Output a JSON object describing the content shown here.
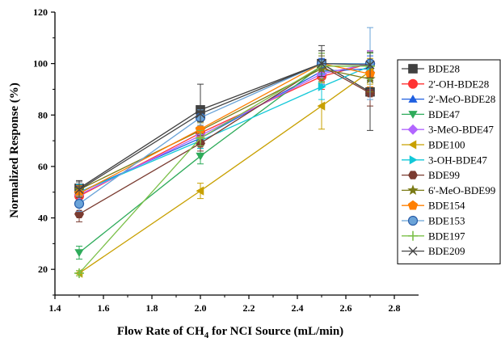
{
  "chart_data": {
    "type": "scatter",
    "title": "",
    "xlabel_main": "Flow Rate of CH",
    "xlabel_sub": "4",
    "xlabel_rest": " for NCI Source (mL/min)",
    "ylabel": "Normalized Response (%)",
    "xlim": [
      1.4,
      2.9
    ],
    "ylim": [
      10,
      120
    ],
    "xticks": [
      "1.4",
      "1.6",
      "1.8",
      "2.0",
      "2.2",
      "2.4",
      "2.6",
      "2.8"
    ],
    "yticks": [
      "20",
      "40",
      "60",
      "80",
      "100",
      "120"
    ],
    "x": [
      1.5,
      2.0,
      2.5,
      2.7
    ],
    "legend_position": "right",
    "series": [
      {
        "name": "BDE28",
        "color": "#404040",
        "marker": "square",
        "values": [
          51.5,
          82,
          100,
          89
        ],
        "err": [
          3,
          10,
          7,
          15
        ]
      },
      {
        "name": "2'-OH-BDE28",
        "color": "#ff3333",
        "marker": "circle",
        "values": [
          48.5,
          73,
          95,
          100
        ],
        "err": [
          3,
          3,
          5,
          5
        ]
      },
      {
        "name": "2'-MeO-BDE28",
        "color": "#1f5fe0",
        "marker": "triangle-up",
        "values": [
          50,
          71,
          97,
          98
        ],
        "err": [
          3,
          3,
          5,
          5
        ]
      },
      {
        "name": "BDE47",
        "color": "#2eab5a",
        "marker": "triangle-down",
        "values": [
          26.5,
          64,
          99,
          99
        ],
        "err": [
          2.5,
          3,
          5,
          5
        ]
      },
      {
        "name": "3-MeO-BDE47",
        "color": "#b266ff",
        "marker": "diamond",
        "values": [
          49,
          72,
          96,
          100
        ],
        "err": [
          3,
          3,
          5,
          5
        ]
      },
      {
        "name": "BDE100",
        "color": "#c8a000",
        "marker": "triangle-left",
        "values": [
          18.5,
          50.5,
          83.5,
          97
        ],
        "err": [
          1,
          3,
          9,
          5
        ]
      },
      {
        "name": "3-OH-BDE47",
        "color": "#12c8d8",
        "marker": "triangle-right",
        "values": [
          50,
          70,
          91,
          99
        ],
        "err": [
          3,
          3,
          5,
          5
        ]
      },
      {
        "name": "BDE99",
        "color": "#7a3b30",
        "marker": "hexagon",
        "values": [
          41.5,
          69,
          99,
          88.5
        ],
        "err": [
          3,
          3,
          5,
          5
        ]
      },
      {
        "name": "6'-MeO-BDE99",
        "color": "#7b7b16",
        "marker": "star",
        "values": [
          51,
          74,
          98,
          94
        ],
        "err": [
          3,
          3,
          5,
          5
        ]
      },
      {
        "name": "BDE154",
        "color": "#ff7f00",
        "marker": "pentagon",
        "values": [
          49.5,
          74.5,
          100,
          96
        ],
        "err": [
          3,
          3,
          5,
          5
        ]
      },
      {
        "name": "BDE153",
        "color": "#6aa3d8",
        "marker": "circle-ring",
        "values": [
          45.5,
          79,
          100,
          100
        ],
        "err": [
          3,
          3,
          5,
          14
        ]
      },
      {
        "name": "BDE197",
        "color": "#7cc04a",
        "marker": "plus",
        "values": [
          18.5,
          71,
          99,
          99
        ],
        "err": [
          1,
          3,
          5,
          5
        ]
      },
      {
        "name": "BDE209",
        "color": "#444444",
        "marker": "cross",
        "values": [
          51,
          80.5,
          100,
          99.5
        ],
        "err": [
          3,
          3,
          5,
          5
        ]
      }
    ]
  }
}
